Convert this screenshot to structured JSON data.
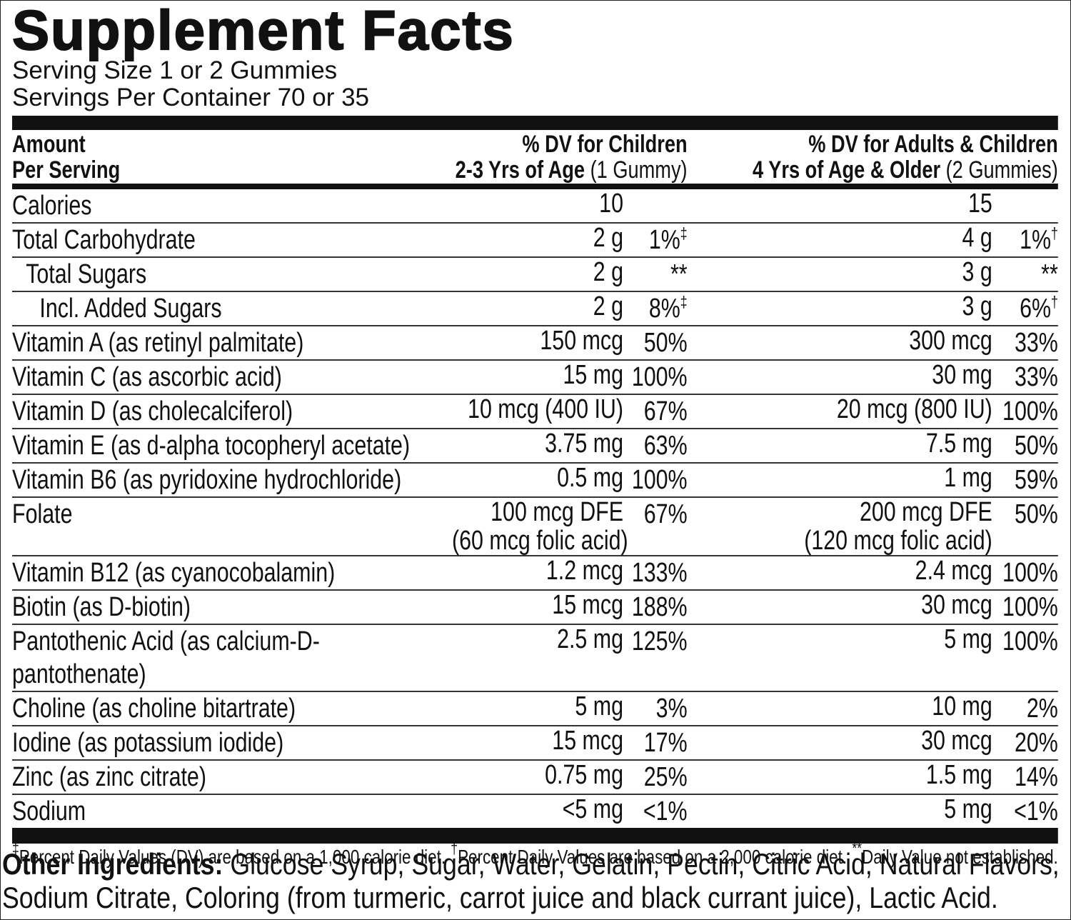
{
  "title": "Supplement Facts",
  "serving_size": "Serving Size 1 or 2 Gummies",
  "servings_per_container": "Servings Per Container 70 or 35",
  "header": {
    "amount": [
      "Amount",
      "Per Serving"
    ],
    "child": {
      "line1": "% DV for Children",
      "age": "2-3 Yrs of Age",
      "serving": "(1 Gummy)"
    },
    "adult": {
      "line1": "% DV for Adults & Children",
      "age": "4 Yrs of Age & Older",
      "serving": "(2 Gummies)"
    }
  },
  "rows": [
    {
      "name": "Calories",
      "child": {
        "amount": "10"
      },
      "adult": {
        "amount": "15"
      }
    },
    {
      "name": "Total Carbohydrate",
      "child": {
        "amount": "2 g",
        "dv": "1%",
        "note": "‡"
      },
      "adult": {
        "amount": "4 g",
        "dv": "1%",
        "note": "†"
      }
    },
    {
      "name": "Total Sugars",
      "child": {
        "amount": "2 g",
        "dv": "**"
      },
      "adult": {
        "amount": "3 g",
        "dv": "**"
      }
    },
    {
      "name": "Incl. Added Sugars",
      "child": {
        "amount": "2 g",
        "dv": "8%",
        "note": "‡"
      },
      "adult": {
        "amount": "3 g",
        "dv": "6%",
        "note": "†"
      }
    },
    {
      "name": "Vitamin A (as retinyl palmitate)",
      "child": {
        "amount": "150 mcg",
        "dv": "50%"
      },
      "adult": {
        "amount": "300 mcg",
        "dv": "33%"
      }
    },
    {
      "name": "Vitamin C (as ascorbic acid)",
      "child": {
        "amount": "15 mg",
        "dv": "100%"
      },
      "adult": {
        "amount": "30 mg",
        "dv": "33%"
      }
    },
    {
      "name": "Vitamin D (as cholecalciferol)",
      "child": {
        "amount": "10 mcg (400 IU)",
        "dv": "67%"
      },
      "adult": {
        "amount": "20 mcg (800 IU)",
        "dv": "100%"
      }
    },
    {
      "name": "Vitamin E (as d-alpha tocopheryl acetate)",
      "child": {
        "amount": "3.75 mg",
        "dv": "63%"
      },
      "adult": {
        "amount": "7.5 mg",
        "dv": "50%"
      }
    },
    {
      "name": "Vitamin B6 (as pyridoxine hydrochloride)",
      "child": {
        "amount": "0.5 mg",
        "dv": "100%"
      },
      "adult": {
        "amount": "1 mg",
        "dv": "59%"
      }
    },
    {
      "name": "Folate",
      "child": {
        "amount": [
          "100 mcg DFE",
          "(60 mcg folic acid)"
        ],
        "dv": "67%"
      },
      "adult": {
        "amount": [
          "200 mcg DFE",
          "(120 mcg folic acid)"
        ],
        "dv": "50%"
      }
    },
    {
      "name": "Vitamin B12 (as cyanocobalamin)",
      "child": {
        "amount": "1.2 mcg",
        "dv": "133%"
      },
      "adult": {
        "amount": "2.4 mcg",
        "dv": "100%"
      }
    },
    {
      "name": "Biotin (as D-biotin)",
      "child": {
        "amount": "15 mcg",
        "dv": "188%"
      },
      "adult": {
        "amount": "30 mcg",
        "dv": "100%"
      }
    },
    {
      "name": "Pantothenic Acid (as calcium-D-pantothenate)",
      "child": {
        "amount": "2.5 mg",
        "dv": "125%"
      },
      "adult": {
        "amount": "5 mg",
        "dv": "100%"
      }
    },
    {
      "name": "Choline (as choline bitartrate)",
      "child": {
        "amount": "5 mg",
        "dv": "3%"
      },
      "adult": {
        "amount": "10 mg",
        "dv": "2%"
      }
    },
    {
      "name": "Iodine (as potassium iodide)",
      "child": {
        "amount": "15 mcg",
        "dv": "17%"
      },
      "adult": {
        "amount": "30 mcg",
        "dv": "20%"
      }
    },
    {
      "name": "Zinc (as zinc citrate)",
      "child": {
        "amount": "0.75 mg",
        "dv": "25%"
      },
      "adult": {
        "amount": "1.5 mg",
        "dv": "14%"
      }
    },
    {
      "name": "Sodium",
      "child": {
        "amount": "<5 mg",
        "dv": "<1%"
      },
      "adult": {
        "amount": "5 mg",
        "dv": "<1%"
      }
    }
  ],
  "footnotes": [
    {
      "symbol": "‡",
      "text": "Percent Daily Values (DV) are based on a 1,000 calorie diet."
    },
    {
      "symbol": "†",
      "text": "Percent Daily Values are based on a 2,000 calorie diet."
    },
    {
      "symbol": "**",
      "text": "Daily Value not established."
    }
  ],
  "other_ingredients": {
    "label": "Other Ingredients:",
    "text": "Glucose Syrup, Sugar, Water, Gelatin, Pectin, Citric Acid, Natural Flavors, Sodium Citrate, Coloring (from turmeric, carrot juice and black currant juice), Lactic Acid."
  }
}
